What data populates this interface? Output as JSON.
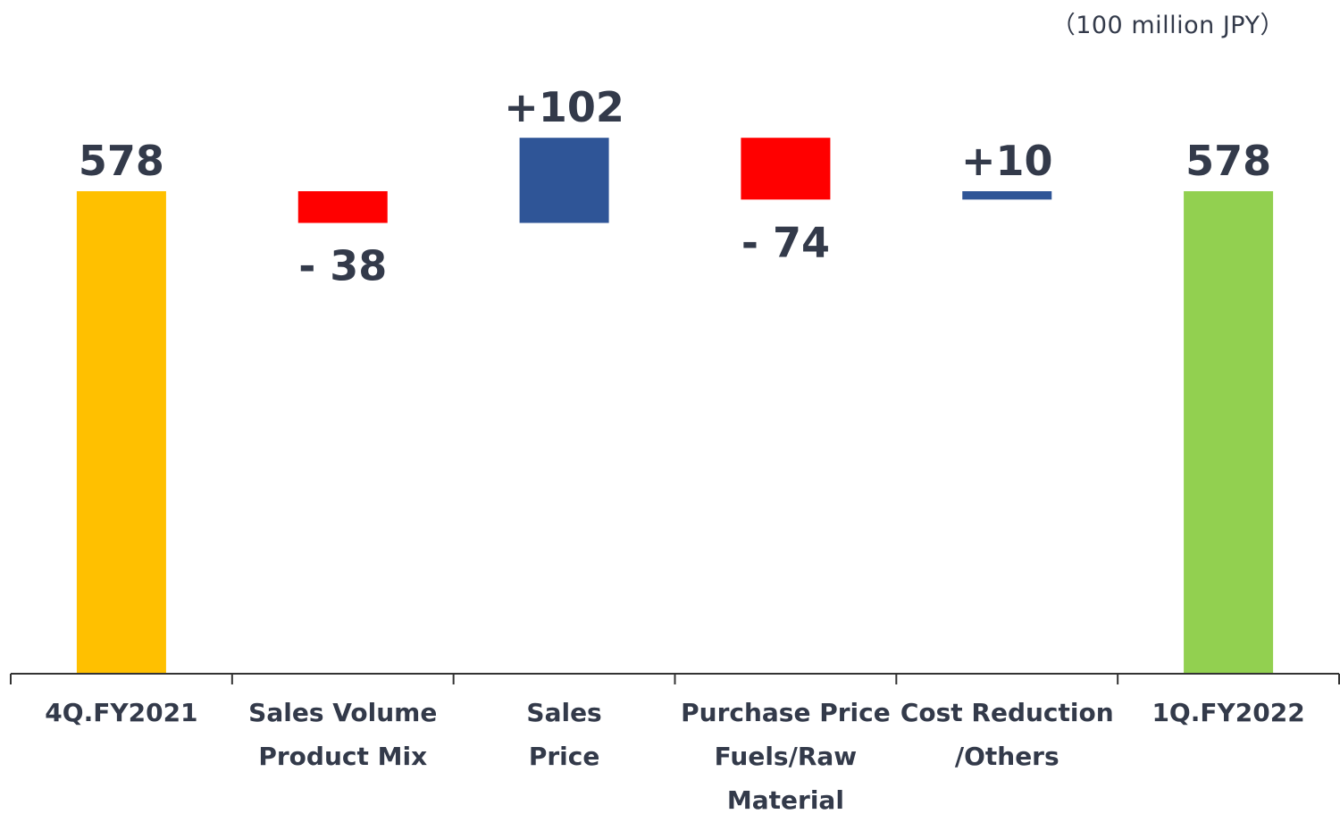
{
  "chart_data": {
    "type": "bar",
    "subtype": "waterfall",
    "unit_label": "（100 million JPY）",
    "y_baseline": 0,
    "categories": [
      [
        "4Q.FY2021"
      ],
      [
        "Sales Volume",
        "Product Mix"
      ],
      [
        "Sales",
        "Price"
      ],
      [
        "Purchase Price",
        "Fuels/Raw",
        "Material"
      ],
      [
        "Cost Reduction",
        "/Others"
      ],
      [
        "1Q.FY2022"
      ]
    ],
    "bars": [
      {
        "kind": "total",
        "value": 578,
        "label": "578",
        "color": "#FFC000"
      },
      {
        "kind": "delta",
        "value": -38,
        "label": "- 38",
        "color": "#FF0000"
      },
      {
        "kind": "delta",
        "value": 102,
        "label": "+102",
        "color": "#2F5597"
      },
      {
        "kind": "delta",
        "value": -74,
        "label": "- 74",
        "color": "#FF0000"
      },
      {
        "kind": "delta",
        "value": 10,
        "label": "+10",
        "color": "#2F5597"
      },
      {
        "kind": "total",
        "value": 578,
        "label": "578",
        "color": "#92D050"
      }
    ],
    "text_color": "#333A4A",
    "axis_color": "#333333"
  }
}
